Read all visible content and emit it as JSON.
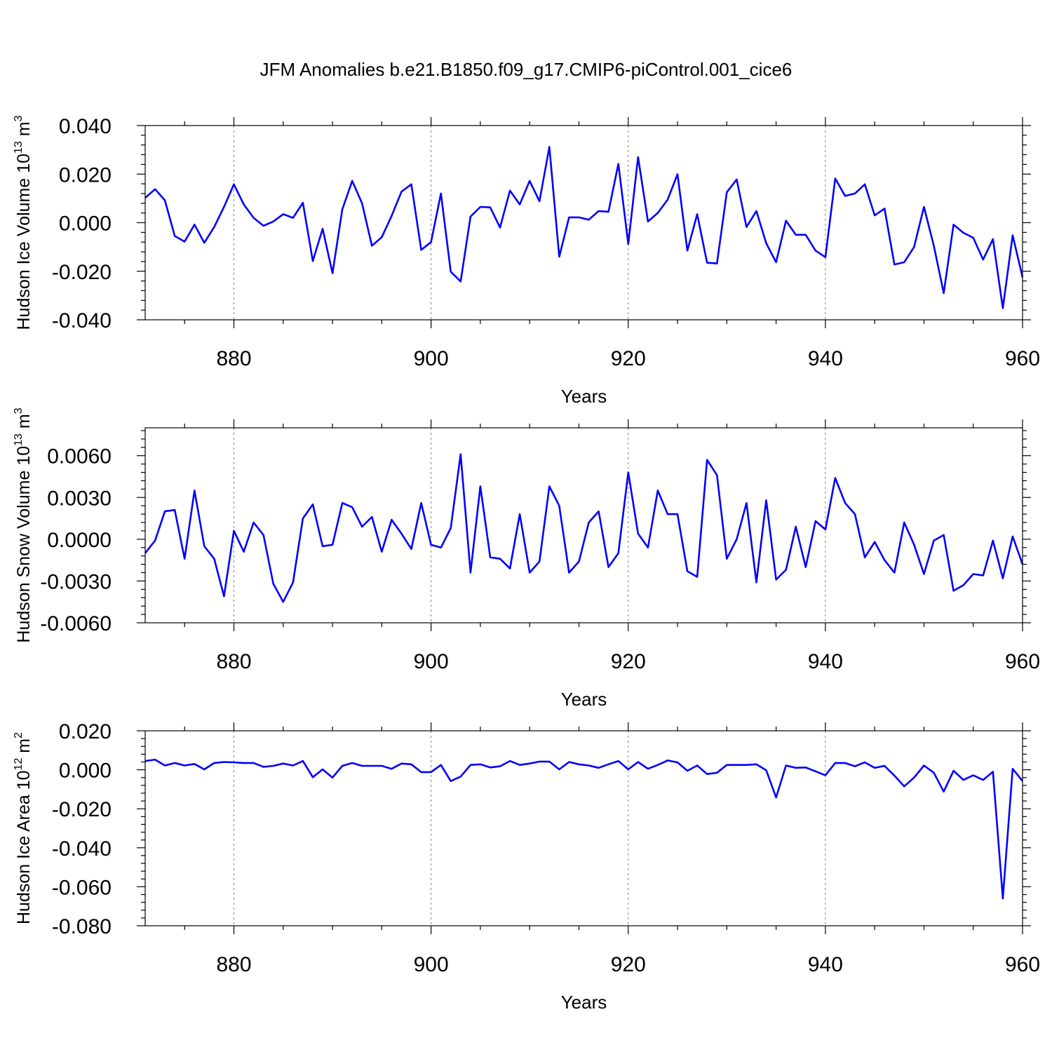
{
  "figure": {
    "title": "JFM Anomalies b.e21.B1850.f09_g17.CMIP6-piControl.001_cice6",
    "line_color": "#0000ff"
  },
  "chart_data": [
    {
      "type": "line",
      "title": "",
      "xlabel": "Years",
      "ylabel": {
        "prefix": "Hudson Ice Volume 10",
        "exponent": "13",
        "unit": " m",
        "unit_exponent": "3"
      },
      "xlim": [
        871,
        960
      ],
      "ylim": [
        -0.04,
        0.04
      ],
      "grid": "vertical dashed at major x ticks",
      "xticks": [
        880,
        900,
        920,
        940,
        960
      ],
      "xtick_labels": [
        "880",
        "900",
        "920",
        "940",
        "960"
      ],
      "yticks": [
        -0.04,
        -0.02,
        0.0,
        0.02,
        0.04
      ],
      "ytick_labels": [
        "-0.040",
        "-0.020",
        "0.000",
        "0.020",
        "0.040"
      ],
      "x_start": 871,
      "series": [
        {
          "name": "Hudson Ice Volume",
          "values": [
            0.0102,
            0.0138,
            0.0092,
            -0.0055,
            -0.0078,
            -0.0008,
            -0.0083,
            -0.0018,
            0.0065,
            0.0158,
            0.0075,
            0.002,
            -0.0013,
            0.0005,
            0.0035,
            0.002,
            0.0082,
            -0.0158,
            -0.0025,
            -0.0208,
            0.0055,
            0.0172,
            0.008,
            -0.0095,
            -0.006,
            0.0028,
            0.0128,
            0.0158,
            -0.0112,
            -0.008,
            0.012,
            -0.0202,
            -0.0242,
            0.0025,
            0.0065,
            0.0063,
            -0.002,
            0.0132,
            0.0075,
            0.0172,
            0.0088,
            0.0312,
            -0.014,
            0.0022,
            0.0022,
            0.0012,
            0.0048,
            0.0045,
            0.0242,
            -0.0088,
            0.027,
            0.0005,
            0.004,
            0.0095,
            0.02,
            -0.0115,
            0.0035,
            -0.0165,
            -0.0168,
            0.0125,
            0.0178,
            -0.0018,
            0.0048,
            -0.0085,
            -0.0163,
            0.0008,
            -0.005,
            -0.005,
            -0.0115,
            -0.0142,
            0.0182,
            0.011,
            0.012,
            0.0158,
            0.003,
            0.0058,
            -0.0172,
            -0.0163,
            -0.01,
            0.0065,
            -0.0095,
            -0.029,
            -0.0008,
            -0.0042,
            -0.0062,
            -0.0152,
            -0.0068,
            -0.0352,
            -0.0052,
            -0.0225
          ]
        }
      ]
    },
    {
      "type": "line",
      "title": "",
      "xlabel": "Years",
      "ylabel": {
        "prefix": "Hudson Snow Volume 10",
        "exponent": "13",
        "unit": " m",
        "unit_exponent": "3"
      },
      "xlim": [
        871,
        960
      ],
      "ylim": [
        -0.006,
        0.008
      ],
      "grid": "vertical dashed at major x ticks",
      "xticks": [
        880,
        900,
        920,
        940,
        960
      ],
      "xtick_labels": [
        "880",
        "900",
        "920",
        "940",
        "960"
      ],
      "yticks": [
        -0.006,
        -0.003,
        0.0,
        0.003,
        0.006
      ],
      "ytick_labels": [
        "-0.0060",
        "-0.0030",
        "0.0000",
        "0.0030",
        "0.0060"
      ],
      "x_start": 871,
      "series": [
        {
          "name": "Hudson Snow Volume",
          "values": [
            -0.001,
            -0.0001,
            0.002,
            0.0021,
            -0.0014,
            0.0035,
            -0.0005,
            -0.0014,
            -0.0041,
            0.0006,
            -0.0009,
            0.0012,
            0.0003,
            -0.0032,
            -0.0045,
            -0.0031,
            0.0015,
            0.0025,
            -0.0005,
            -0.0004,
            0.0026,
            0.0023,
            0.0009,
            0.0016,
            -0.0009,
            0.0014,
            0.0004,
            -0.0007,
            0.0026,
            -0.0004,
            -0.0006,
            0.0008,
            0.0061,
            -0.0024,
            0.0038,
            -0.0013,
            -0.0014,
            -0.0021,
            0.0018,
            -0.0024,
            -0.0016,
            0.0038,
            0.0024,
            -0.0024,
            -0.0016,
            0.0012,
            0.002,
            -0.002,
            -0.001,
            0.0048,
            0.0004,
            -0.0006,
            0.0035,
            0.0018,
            0.0018,
            -0.0023,
            -0.0027,
            0.0057,
            0.0046,
            -0.0014,
            0.0,
            0.0026,
            -0.0031,
            0.0028,
            -0.0029,
            -0.0022,
            0.0009,
            -0.002,
            0.0013,
            0.0007,
            0.0044,
            0.0026,
            0.0018,
            -0.0013,
            -0.0002,
            -0.0015,
            -0.0024,
            0.0012,
            -0.0004,
            -0.0025,
            -0.0001,
            0.0003,
            -0.0037,
            -0.0033,
            -0.0025,
            -0.0026,
            -0.0001,
            -0.0028,
            0.0002,
            -0.0018
          ]
        }
      ]
    },
    {
      "type": "line",
      "title": "",
      "xlabel": "Years",
      "ylabel": {
        "prefix": "Hudson Ice Area 10",
        "exponent": "12",
        "unit": " m",
        "unit_exponent": "2"
      },
      "xlim": [
        871,
        960
      ],
      "ylim": [
        -0.08,
        0.02
      ],
      "grid": "vertical dashed at major x ticks",
      "xticks": [
        880,
        900,
        920,
        940,
        960
      ],
      "xtick_labels": [
        "880",
        "900",
        "920",
        "940",
        "960"
      ],
      "yticks": [
        -0.08,
        -0.06,
        -0.04,
        -0.02,
        0.0,
        0.02
      ],
      "ytick_labels": [
        "-0.080",
        "-0.060",
        "-0.040",
        "-0.020",
        "0.000",
        "0.020"
      ],
      "x_start": 871,
      "series": [
        {
          "name": "Hudson Ice Area",
          "values": [
            0.0045,
            0.0052,
            0.0022,
            0.0035,
            0.0022,
            0.003,
            0.0002,
            0.0035,
            0.004,
            0.0038,
            0.0035,
            0.0035,
            0.0015,
            0.002,
            0.0032,
            0.0022,
            0.0045,
            -0.0038,
            0.0002,
            -0.004,
            0.002,
            0.0035,
            0.002,
            0.002,
            0.002,
            0.0005,
            0.0032,
            0.0028,
            -0.0012,
            -0.0012,
            0.0025,
            -0.0058,
            -0.0035,
            0.0025,
            0.0028,
            0.0012,
            0.0018,
            0.0045,
            0.0025,
            0.0032,
            0.0042,
            0.0042,
            0.0002,
            0.004,
            0.0028,
            0.0022,
            0.001,
            0.0028,
            0.0045,
            0.0002,
            0.004,
            0.0005,
            0.0025,
            0.0048,
            0.0038,
            -0.0005,
            0.0022,
            -0.0022,
            -0.0015,
            0.0025,
            0.0025,
            0.0025,
            0.0028,
            -0.0002,
            -0.0142,
            0.0022,
            0.001,
            0.0012,
            -0.0008,
            -0.0028,
            0.0035,
            0.0035,
            0.0018,
            0.0038,
            0.001,
            0.002,
            -0.003,
            -0.0085,
            -0.004,
            0.0022,
            -0.0015,
            -0.0112,
            -0.0005,
            -0.0052,
            -0.0028,
            -0.0052,
            -0.001,
            -0.066,
            0.0005,
            -0.0058
          ]
        }
      ]
    }
  ]
}
